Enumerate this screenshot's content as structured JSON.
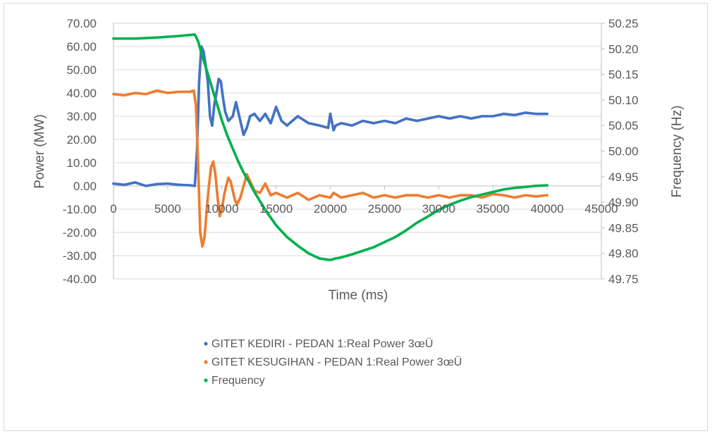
{
  "chart_data": {
    "type": "scatter",
    "title": "",
    "xlabel": "Time (ms)",
    "ylabel": "Power (MW)",
    "y2label": "Frequency (Hz)",
    "xlim": [
      0,
      45000
    ],
    "ylim": [
      -40,
      70
    ],
    "y2lim": [
      49.75,
      50.25
    ],
    "x_ticks": [
      "0",
      "5000",
      "10000",
      "15000",
      "20000",
      "25000",
      "30000",
      "35000",
      "40000",
      "45000"
    ],
    "y_ticks": [
      "70.00",
      "60.00",
      "50.00",
      "40.00",
      "30.00",
      "20.00",
      "10.00",
      "0.00",
      "-10.00",
      "-20.00",
      "-30.00",
      "-40.00"
    ],
    "y2_ticks": [
      "50.25",
      "50.20",
      "50.15",
      "50.10",
      "50.05",
      "50.00",
      "49.95",
      "49.90",
      "49.85",
      "49.80",
      "49.75"
    ],
    "grid": "horizontal",
    "legend_position": "bottom",
    "series": [
      {
        "name": "GITET KEDIRI - PEDAN 1:Real Power 3œÜ",
        "axis": "left",
        "color": "#4472c4",
        "x": [
          0,
          1000,
          2000,
          3000,
          4000,
          5000,
          6000,
          7000,
          7500,
          7700,
          7900,
          8100,
          8300,
          8500,
          8700,
          8900,
          9100,
          9300,
          9500,
          9700,
          9900,
          10100,
          10300,
          10600,
          11000,
          11300,
          11600,
          12000,
          12300,
          12600,
          13000,
          13500,
          14000,
          14500,
          15000,
          15500,
          16000,
          17000,
          18000,
          19000,
          19800,
          20000,
          20300,
          20500,
          21000,
          22000,
          23000,
          24000,
          25000,
          26000,
          27000,
          28000,
          29000,
          30000,
          31000,
          32000,
          33000,
          34000,
          35000,
          36000,
          37000,
          38000,
          39000,
          40000
        ],
        "values": [
          1.0,
          0.5,
          1.5,
          0.0,
          0.8,
          1.0,
          0.5,
          0.3,
          0.0,
          15.0,
          45.0,
          60.0,
          58.0,
          52.0,
          45.0,
          30.0,
          26.0,
          35.0,
          40.0,
          46.0,
          45.0,
          38.0,
          32.0,
          28.0,
          30.0,
          36.0,
          30.0,
          22.0,
          25.0,
          30.0,
          31.0,
          28.0,
          31.0,
          27.0,
          34.0,
          28.0,
          26.0,
          30.0,
          27.0,
          26.0,
          25.0,
          31.0,
          24.0,
          26.0,
          27.0,
          26.0,
          28.0,
          27.0,
          28.0,
          27.0,
          29.0,
          28.0,
          29.0,
          30.0,
          29.0,
          30.0,
          29.0,
          30.0,
          30.0,
          31.0,
          30.5,
          31.5,
          31.0,
          31.0
        ]
      },
      {
        "name": "GITET KESUGIHAN - PEDAN 1:Real Power 3œÜ",
        "axis": "left",
        "color": "#ed7d31",
        "x": [
          0,
          1000,
          2000,
          3000,
          4000,
          5000,
          6000,
          7000,
          7400,
          7600,
          7800,
          8000,
          8200,
          8400,
          8600,
          8800,
          9000,
          9200,
          9400,
          9600,
          9800,
          10000,
          10200,
          10400,
          10600,
          10800,
          11000,
          11200,
          11400,
          11700,
          12000,
          12300,
          12600,
          13000,
          13500,
          14000,
          14500,
          15000,
          16000,
          17000,
          18000,
          19000,
          20000,
          20300,
          21000,
          22000,
          23000,
          24000,
          25000,
          26000,
          27000,
          28000,
          29000,
          30000,
          31000,
          32000,
          33000,
          34000,
          35000,
          36000,
          37000,
          38000,
          39000,
          40000
        ],
        "values": [
          39.5,
          39.0,
          40.0,
          39.5,
          41.0,
          40.0,
          40.5,
          40.5,
          41.0,
          35.0,
          10.0,
          -20.0,
          -26.0,
          -22.0,
          -10.0,
          0.0,
          8.0,
          10.5,
          5.0,
          -5.0,
          -13.0,
          -10.0,
          -4.0,
          0.0,
          3.5,
          2.0,
          -2.0,
          -6.0,
          -8.0,
          -5.0,
          0.0,
          5.0,
          2.0,
          -2.0,
          -3.0,
          1.0,
          -4.0,
          -3.0,
          -5.0,
          -3.0,
          -6.0,
          -4.0,
          -5.0,
          -3.0,
          -5.0,
          -4.0,
          -3.0,
          -5.0,
          -4.0,
          -5.0,
          -4.0,
          -4.0,
          -5.0,
          -4.0,
          -5.0,
          -4.0,
          -4.0,
          -5.0,
          -3.5,
          -4.0,
          -5.0,
          -4.0,
          -4.5,
          -4.0
        ]
      },
      {
        "name": "Frequency",
        "axis": "right",
        "color": "#00b050",
        "x": [
          0,
          2000,
          4000,
          6000,
          7000,
          7500,
          7800,
          8000,
          8200,
          8500,
          9000,
          9500,
          10000,
          10500,
          11000,
          11500,
          12000,
          12500,
          13000,
          14000,
          15000,
          16000,
          17000,
          18000,
          19000,
          20000,
          20500,
          21000,
          22000,
          23000,
          24000,
          25000,
          26000,
          27000,
          28000,
          29000,
          30000,
          31000,
          32000,
          33000,
          34000,
          35000,
          36000,
          37000,
          38000,
          39000,
          40000
        ],
        "values": [
          50.22,
          50.22,
          50.222,
          50.225,
          50.227,
          50.228,
          50.215,
          50.2,
          50.185,
          50.165,
          50.13,
          50.095,
          50.06,
          50.03,
          50.005,
          49.98,
          49.958,
          49.94,
          49.92,
          49.885,
          49.855,
          49.832,
          49.815,
          49.8,
          49.79,
          49.787,
          49.79,
          49.792,
          49.798,
          49.805,
          49.812,
          49.822,
          49.832,
          49.845,
          49.86,
          49.872,
          49.885,
          49.895,
          49.903,
          49.91,
          49.915,
          49.92,
          49.925,
          49.928,
          49.93,
          49.932,
          49.933
        ]
      }
    ]
  }
}
